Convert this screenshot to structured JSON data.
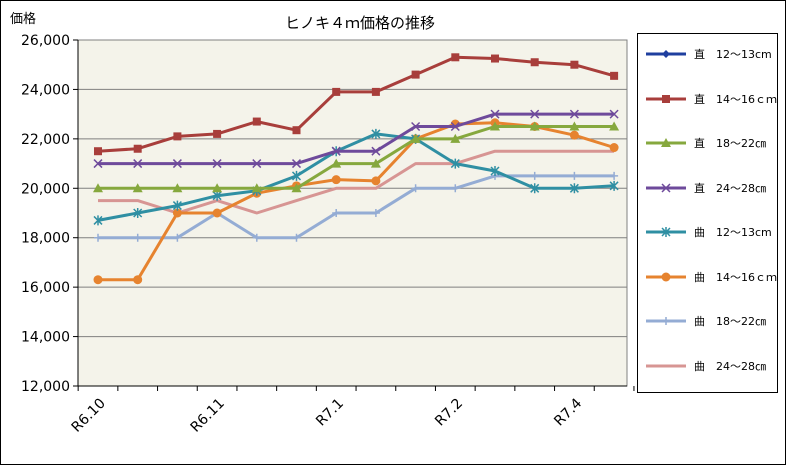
{
  "chart_data": {
    "type": "line",
    "title": "ヒノキ４ｍ価格の推移",
    "ylabel": "価格",
    "xlabel": "",
    "ylim": [
      12000,
      26000
    ],
    "yticks": [
      "12,000",
      "14,000",
      "16,000",
      "18,000",
      "20,000",
      "22,000",
      "24,000",
      "26,000"
    ],
    "xtick_labels": [
      "R6.10",
      "R6.11",
      "R7.1",
      "R7.2",
      "R7.4"
    ],
    "x": [
      1,
      2,
      3,
      4,
      5,
      6,
      7,
      8,
      9,
      10,
      11,
      12,
      13,
      14
    ],
    "grid": "horizontal",
    "legend_position": "right",
    "series": [
      {
        "name": "直　12～13cm",
        "color": "#1f3f9f",
        "marker": "diamond",
        "values": [
          null,
          null,
          null,
          null,
          null,
          null,
          null,
          null,
          null,
          null,
          null,
          null,
          null,
          null
        ]
      },
      {
        "name": "直　14～16ｃｍ",
        "color": "#a83e3b",
        "marker": "square",
        "values": [
          21500,
          21600,
          22100,
          22200,
          22700,
          22350,
          23900,
          23900,
          24600,
          25300,
          25250,
          25100,
          25000,
          24550
        ]
      },
      {
        "name": "直　18～22㎝",
        "color": "#86a83e",
        "marker": "triangle",
        "values": [
          20000,
          20000,
          20000,
          20000,
          20000,
          20000,
          21000,
          21000,
          22000,
          22000,
          22500,
          22500,
          22500,
          22500
        ]
      },
      {
        "name": "直　24～28㎝",
        "color": "#6e4a9b",
        "marker": "x",
        "values": [
          21000,
          21000,
          21000,
          21000,
          21000,
          21000,
          21500,
          21500,
          22500,
          22500,
          23000,
          23000,
          23000,
          23000
        ]
      },
      {
        "name": "曲　12～13cm",
        "color": "#2f8fa3",
        "marker": "star",
        "values": [
          18700,
          19000,
          19300,
          19700,
          19900,
          20500,
          21500,
          22200,
          22000,
          21000,
          20700,
          20000,
          20000,
          20100
        ]
      },
      {
        "name": "曲　14～16ｃｍ",
        "color": "#e6832f",
        "marker": "circle",
        "values": [
          16300,
          16300,
          19000,
          19000,
          19800,
          20100,
          20350,
          20300,
          22000,
          22600,
          22650,
          22500,
          22150,
          21650
        ]
      },
      {
        "name": "曲　18～22㎝",
        "color": "#94acd4",
        "marker": "plus",
        "values": [
          18000,
          18000,
          18000,
          19000,
          18000,
          18000,
          19000,
          19000,
          20000,
          20000,
          20500,
          20500,
          20500,
          20500
        ]
      },
      {
        "name": "曲　24～28㎝",
        "color": "#d79593",
        "marker": "none",
        "values": [
          19500,
          19500,
          19000,
          19500,
          19000,
          19500,
          20000,
          20000,
          21000,
          21000,
          21500,
          21500,
          21500,
          21500
        ]
      }
    ]
  }
}
